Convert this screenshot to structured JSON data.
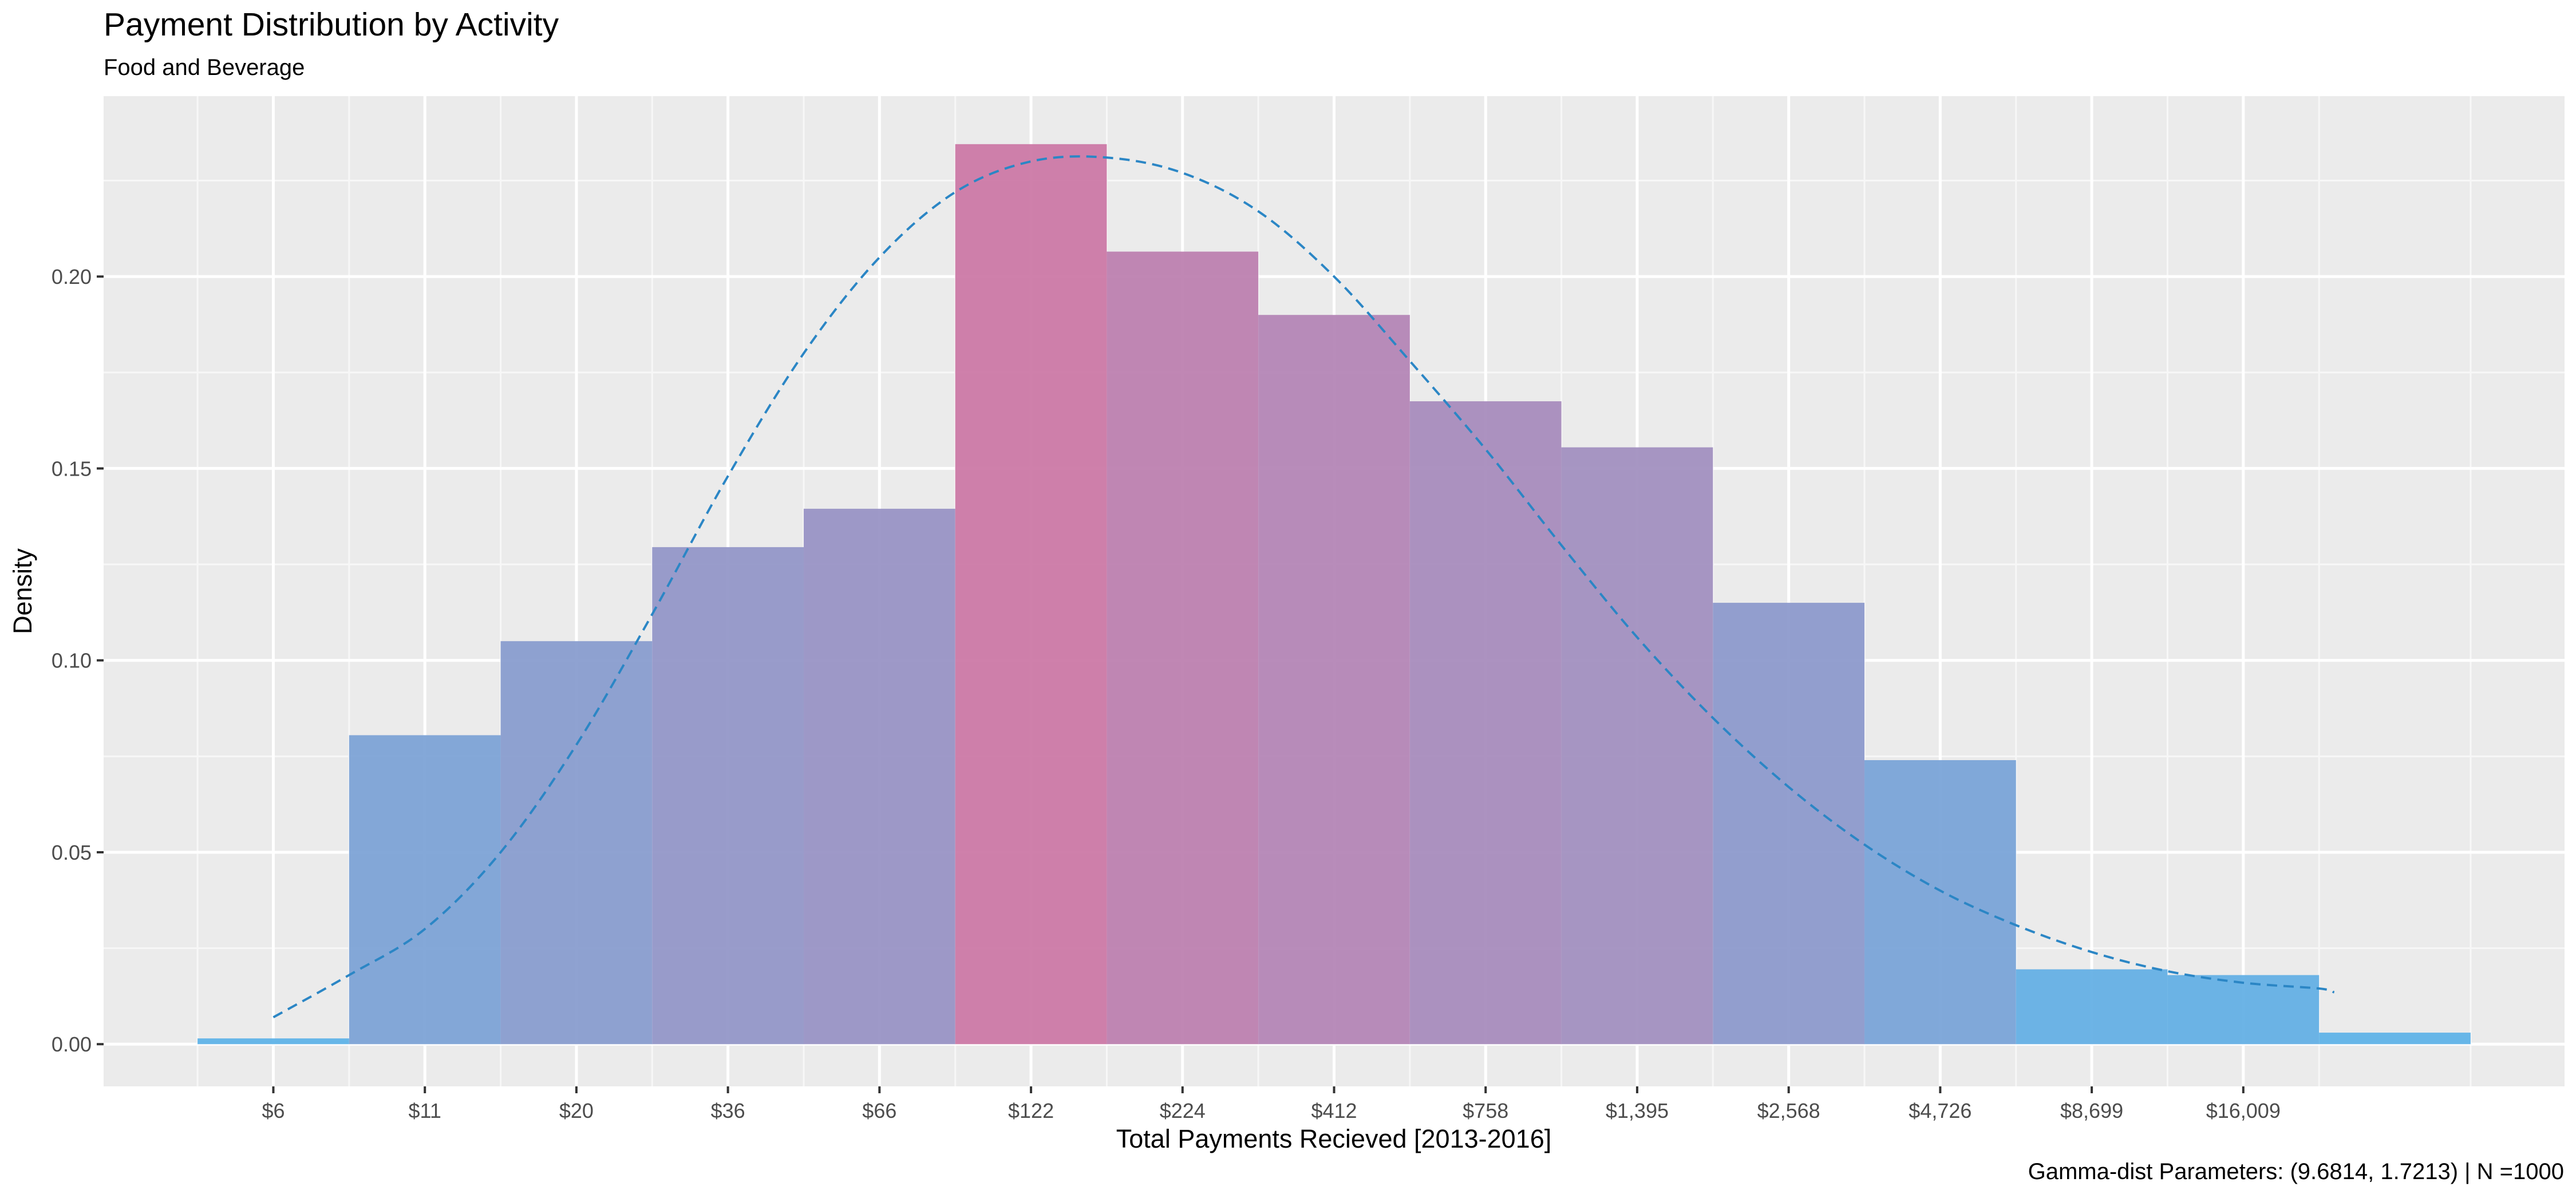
{
  "chart_data": {
    "type": "bar",
    "title": "Payment Distribution by Activity",
    "subtitle": "Food and Beverage",
    "xlabel": "Total Payments Recieved [2013-2016]",
    "ylabel": "Density",
    "caption": "Gamma-dist Parameters: (9.6814, 1.7213) | N =1000",
    "x_scale": "log-dollar",
    "x_ticks": [
      {
        "label": "$6",
        "pos": 0.5
      },
      {
        "label": "$11",
        "pos": 1.5
      },
      {
        "label": "$20",
        "pos": 2.5
      },
      {
        "label": "$36",
        "pos": 3.5
      },
      {
        "label": "$66",
        "pos": 4.5
      },
      {
        "label": "$122",
        "pos": 5.5
      },
      {
        "label": "$224",
        "pos": 6.5
      },
      {
        "label": "$412",
        "pos": 7.5
      },
      {
        "label": "$758",
        "pos": 8.5
      },
      {
        "label": "$1,395",
        "pos": 9.5
      },
      {
        "label": "$2,568",
        "pos": 10.5
      },
      {
        "label": "$4,726",
        "pos": 11.5
      },
      {
        "label": "$8,699",
        "pos": 12.5
      },
      {
        "label": "$16,009",
        "pos": 13.5
      }
    ],
    "y_ticks": [
      {
        "label": "0.00",
        "value": 0.0
      },
      {
        "label": "0.05",
        "value": 0.05
      },
      {
        "label": "0.10",
        "value": 0.1
      },
      {
        "label": "0.15",
        "value": 0.15
      },
      {
        "label": "0.20",
        "value": 0.2
      }
    ],
    "xlim": [
      -0.62,
      15.62
    ],
    "ylim": [
      -0.011,
      0.247
    ],
    "grid": true,
    "bins": [
      {
        "start": 0,
        "end": 1,
        "density": 0.0015
      },
      {
        "start": 1,
        "end": 2,
        "density": 0.0805
      },
      {
        "start": 2,
        "end": 3,
        "density": 0.105
      },
      {
        "start": 3,
        "end": 4,
        "density": 0.1295
      },
      {
        "start": 4,
        "end": 5,
        "density": 0.1395
      },
      {
        "start": 5,
        "end": 6,
        "density": 0.2345
      },
      {
        "start": 6,
        "end": 7,
        "density": 0.2065
      },
      {
        "start": 7,
        "end": 8,
        "density": 0.19
      },
      {
        "start": 8,
        "end": 9,
        "density": 0.1675
      },
      {
        "start": 9,
        "end": 10,
        "density": 0.1555
      },
      {
        "start": 10,
        "end": 11,
        "density": 0.115
      },
      {
        "start": 11,
        "end": 12,
        "density": 0.074
      },
      {
        "start": 12,
        "end": 13,
        "density": 0.0195
      },
      {
        "start": 13,
        "end": 14,
        "density": 0.018
      },
      {
        "start": 14,
        "end": 15,
        "density": 0.003
      }
    ],
    "fit_curve": {
      "style": "dashed",
      "color": "#2b86c5",
      "x": [
        0.5,
        1.0,
        1.5,
        2.0,
        2.5,
        3.0,
        3.5,
        4.0,
        4.5,
        5.0,
        5.5,
        6.0,
        6.5,
        7.0,
        7.5,
        8.0,
        8.5,
        9.0,
        9.5,
        10.0,
        10.5,
        11.0,
        11.5,
        12.0,
        12.5,
        13.0,
        13.5,
        14.0,
        14.1
      ],
      "y": [
        0.007,
        0.018,
        0.03,
        0.05,
        0.078,
        0.112,
        0.148,
        0.18,
        0.205,
        0.222,
        0.23,
        0.231,
        0.227,
        0.217,
        0.2,
        0.178,
        0.155,
        0.13,
        0.106,
        0.085,
        0.067,
        0.052,
        0.04,
        0.031,
        0.024,
        0.019,
        0.016,
        0.0145,
        0.0135
      ]
    },
    "color_low": "#5fb3e8",
    "color_high": "#cc79a7"
  }
}
